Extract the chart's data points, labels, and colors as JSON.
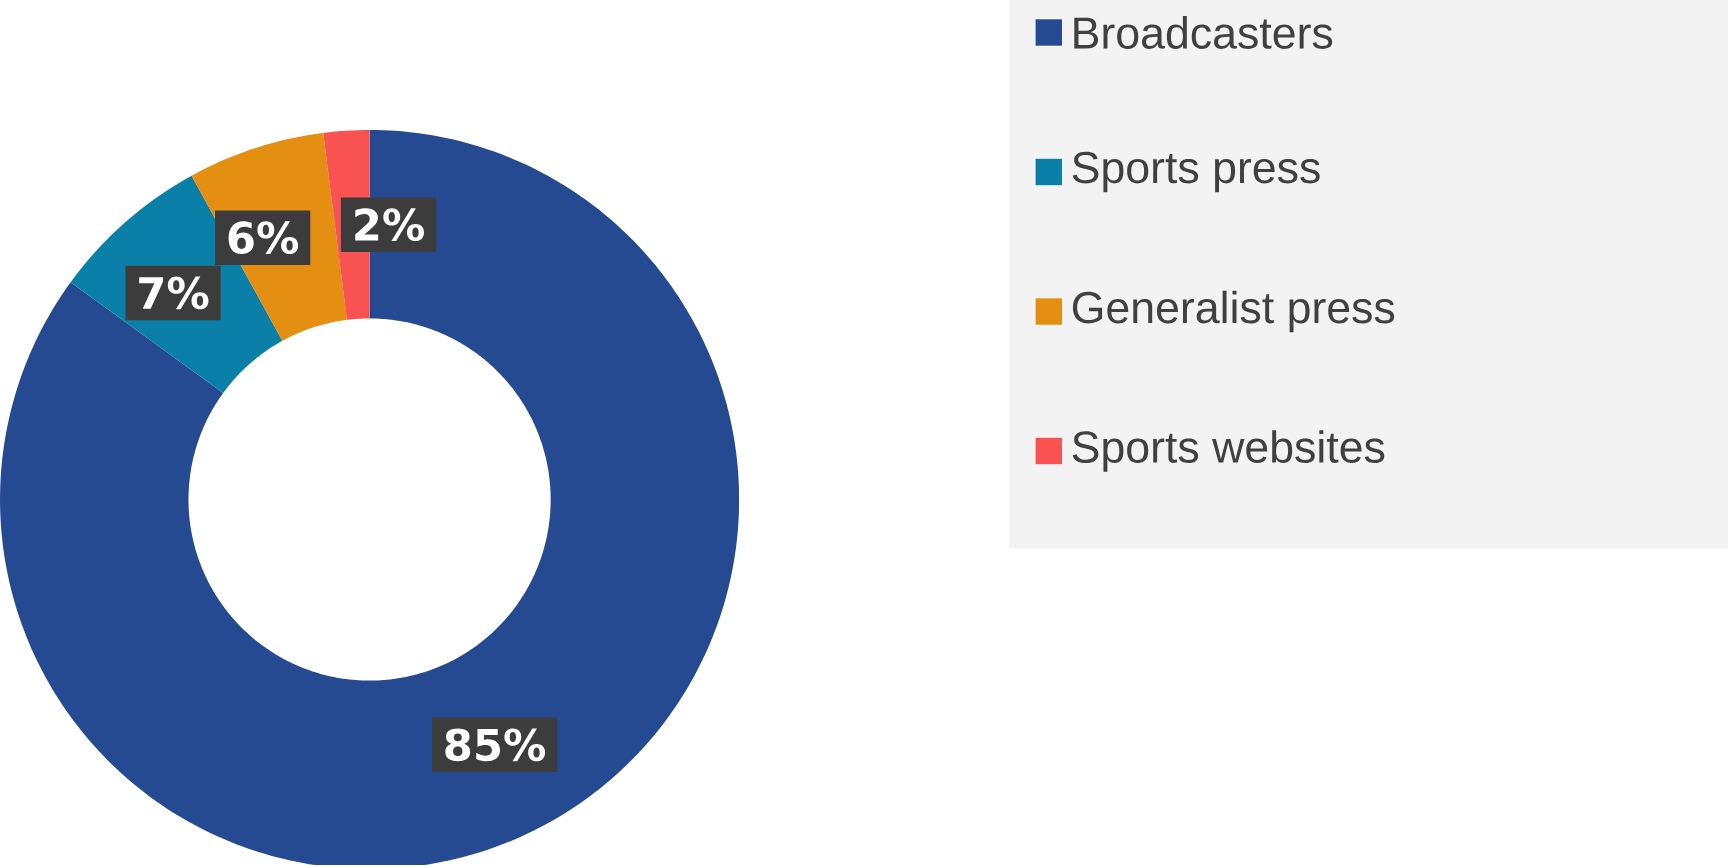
{
  "chart_data": {
    "type": "donut",
    "categories": [
      "Broadcasters",
      "Sports press",
      "Generalist press",
      "Sports websites"
    ],
    "values": [
      85,
      7,
      6,
      2
    ],
    "colors": [
      "#264a92",
      "#0a7fa8",
      "#e48e12",
      "#f85252"
    ],
    "value_labels": [
      "85%",
      "7%",
      "6%",
      "2%"
    ],
    "legend": "right"
  }
}
